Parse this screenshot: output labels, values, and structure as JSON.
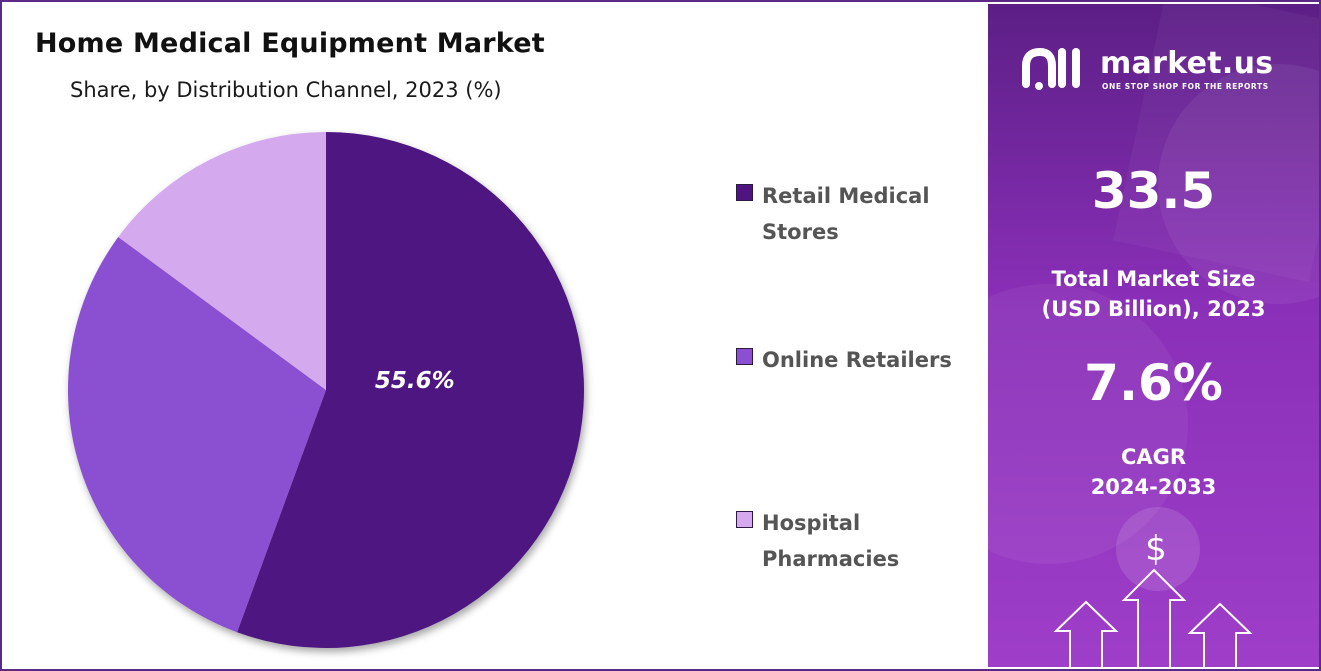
{
  "chart_data": {
    "type": "pie",
    "title": "Home Medical Equipment Market",
    "subtitle": "Share, by Distribution Channel, 2023 (%)",
    "series": [
      {
        "name": "Retail Medical Stores",
        "value": 55.6,
        "color": "#4e1580",
        "label": "55.6%"
      },
      {
        "name": "Online Retailers",
        "value": 29.5,
        "color": "#8b4fd1",
        "label": ""
      },
      {
        "name": "Hospital Pharmacies",
        "value": 14.9,
        "color": "#d4a9ee",
        "label": ""
      }
    ],
    "legend_position": "right"
  },
  "legend": {
    "items": [
      {
        "line1": "Retail Medical",
        "line2": "Stores"
      },
      {
        "line1": "Online Retailers",
        "line2": ""
      },
      {
        "line1": "Hospital",
        "line2": "Pharmacies"
      }
    ]
  },
  "panel": {
    "logo_text": "market.us",
    "logo_tagline": "ONE STOP SHOP FOR THE REPORTS",
    "market_size_value": "33.5",
    "market_size_label_1": "Total Market Size",
    "market_size_label_2": "(USD Billion), 2023",
    "cagr_value": "7.6%",
    "cagr_label_1": "CAGR",
    "cagr_label_2": "2024-2033",
    "dollar_symbol": "$",
    "accent_color": "#7a2ba8"
  }
}
